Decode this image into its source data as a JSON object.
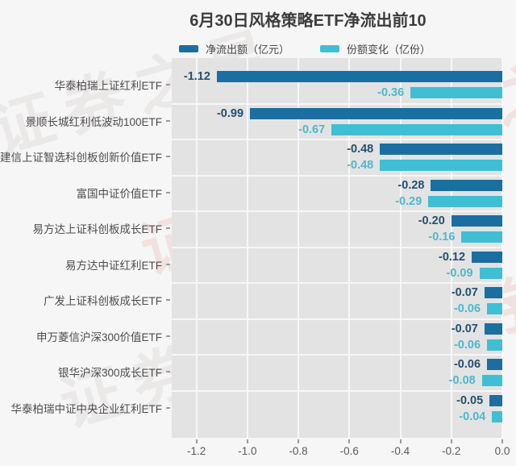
{
  "title": "6月30日风格策略ETF净流出前10",
  "watermark": "证券之星",
  "legend": [
    {
      "label": "净流出额（亿元）",
      "color": "#1a6fa0"
    },
    {
      "label": "份额变化（亿份）",
      "color": "#40bfd4"
    }
  ],
  "colors": {
    "bar_net_outflow": "#1a6fa0",
    "bar_share_change": "#40bfd4",
    "label_net_outflow": "#23506f",
    "label_share_change": "#4cb9ce",
    "plot_background": "#e3e3e3",
    "page_background": "#f6f6f6"
  },
  "chart_data": {
    "type": "bar",
    "orientation": "horizontal",
    "title": "6月30日风格策略ETF净流出前10",
    "categories": [
      "华泰柏瑞上证红利ETF",
      "景顺长城红利低波动100ETF",
      "建信上证智选科创板创新价值ETF",
      "富国中证价值ETF",
      "易方达上证科创板成长ETF",
      "易方达中证红利ETF",
      "广发上证科创板成长ETF",
      "申万菱信沪深300价值ETF",
      "银华沪深300成长ETF",
      "华泰柏瑞中证中央企业红利ETF"
    ],
    "series": [
      {
        "name": "净流出额（亿元）",
        "color": "#1a6fa0",
        "label_color": "#23506f",
        "values": [
          -1.12,
          -0.99,
          -0.48,
          -0.28,
          -0.2,
          -0.12,
          -0.07,
          -0.07,
          -0.06,
          -0.05
        ]
      },
      {
        "name": "份额变化（亿份）",
        "color": "#40bfd4",
        "label_color": "#4cb9ce",
        "values": [
          -0.36,
          -0.67,
          -0.48,
          -0.29,
          -0.16,
          -0.09,
          -0.06,
          -0.06,
          -0.08,
          -0.04
        ]
      }
    ],
    "xlim": [
      -1.3,
      0
    ],
    "xticks": [
      -1.2,
      -1.0,
      -0.8,
      -0.6,
      -0.4,
      -0.2,
      0.0
    ],
    "xtick_labels": [
      "-1.2",
      "-1.0",
      "-0.8",
      "-0.6",
      "-0.4",
      "-0.2",
      "0.0"
    ],
    "grid": true,
    "legend_position": "top"
  }
}
